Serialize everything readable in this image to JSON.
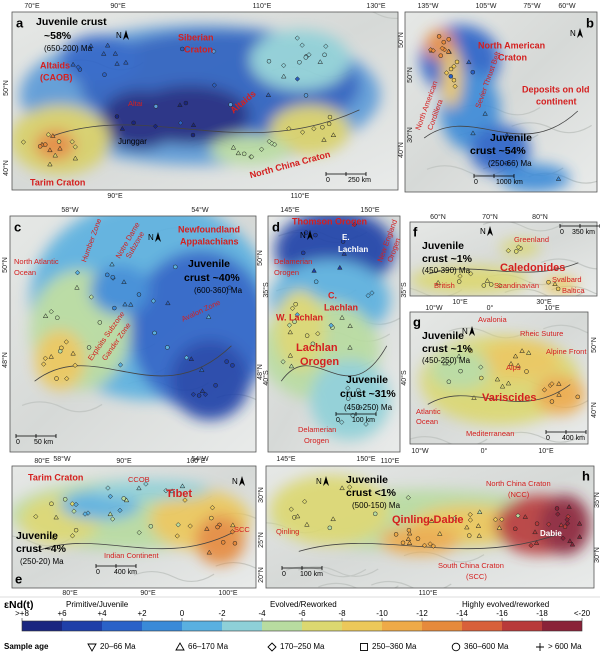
{
  "panels": [
    {
      "letter": "a",
      "labels": [
        "Juvenile crust",
        "~58%",
        "(650-200) Ma",
        "Altaids",
        "(CAOB)",
        "Siberian",
        "Craton",
        "Altaids",
        "Altai",
        "Junggar",
        "Tarim Craton",
        "North China Craton",
        "0",
        "250 km",
        "N"
      ],
      "ticks": [
        "70°E",
        "90°E",
        "110°E",
        "130°E",
        "90°E",
        "110°E",
        "50°N",
        "40°N",
        "50°N",
        "40°N"
      ]
    },
    {
      "letter": "b",
      "labels": [
        "North American",
        "Craton",
        "Deposits on old",
        "continent",
        "North American",
        "Cordillera",
        "Sevier Thrust Belt",
        "Juvenile",
        "crust ~54%",
        "(250-66) Ma",
        "0",
        "1000 km",
        "N"
      ],
      "ticks": [
        "135°W",
        "105°W",
        "75°W",
        "60°W",
        "50°N",
        "30°N"
      ]
    },
    {
      "letter": "c",
      "labels": [
        "Newfoundland",
        "Appalachians",
        "Juvenile",
        "crust ~40%",
        "(600-360) Ma",
        "North Atlantic",
        "Ocean",
        "Humber Zone",
        "Notre Dame",
        "Subzone",
        "Exploits Subzone",
        "Gander Zone",
        "Avalon Zone",
        "0",
        "50 km",
        "N"
      ],
      "ticks": [
        "58°W",
        "54°W",
        "58°W",
        "54°W",
        "50°N",
        "48°N",
        "50°N",
        "48°N"
      ]
    },
    {
      "letter": "d",
      "labels": [
        "Thomson Orogen",
        "E.",
        "Lachlan",
        "New England",
        "Orogen",
        "Delamerian",
        "Orogen",
        "C.",
        "Lachlan",
        "W. Lachlan",
        "Lachlan",
        "Orogen",
        "Juvenile",
        "crust ~31%",
        "(450-250) Ma",
        "Delamerian",
        "Orogen",
        "0",
        "100 km",
        "N"
      ],
      "ticks": [
        "145°E",
        "150°E",
        "145°E",
        "150°E",
        "35°S",
        "40°S",
        "35°S",
        "40°S"
      ]
    },
    {
      "letter": "f",
      "labels": [
        "Juvenile",
        "crust ~1%",
        "(450-390) Ma",
        "Greenland",
        "Caledonides",
        "British",
        "Scandinavian",
        "Svalbard",
        "Baltica",
        "0",
        "350 km",
        "N"
      ],
      "ticks": [
        "60°N",
        "70°N",
        "80°N",
        "10°E",
        "30°E"
      ]
    },
    {
      "letter": "g",
      "labels": [
        "Juvenile",
        "crust ~1%",
        "(450-250) Ma",
        "Avalonia",
        "Rheic Suture",
        "Alps",
        "Alpine Front",
        "Variscides",
        "Atlantic",
        "Ocean",
        "Mediterranean",
        "0",
        "400 km",
        "N"
      ],
      "ticks": [
        "10°W",
        "0°",
        "10°E",
        "50°N",
        "40°N",
        "10°W",
        "0°",
        "10°E"
      ]
    },
    {
      "letter": "e",
      "labels": [
        "Tarim Craton",
        "CCOB",
        "Tibet",
        "SCC",
        "Juvenile",
        "crust ~4%",
        "(250-20) Ma",
        "Indian Continent",
        "0",
        "400 km",
        "N"
      ],
      "ticks": [
        "80°E",
        "90°E",
        "100°E",
        "80°E",
        "90°E",
        "100°E",
        "30°N",
        "25°N",
        "20°N"
      ]
    },
    {
      "letter": "h",
      "labels": [
        "Juvenile",
        "crust <1%",
        "(500-150) Ma",
        "North China Craton",
        "(NCC)",
        "Qinling",
        "Qinling-Dabie",
        "Dabie",
        "South China Craton",
        "(SCC)",
        "0",
        "100 km",
        "N"
      ],
      "ticks": [
        "110°E",
        "110°E",
        "35°N",
        "30°N"
      ]
    }
  ],
  "legend": {
    "title": "εNd(t)",
    "groups": [
      "Primitive/Juvenile",
      "Evolved/Reworked",
      "Highly evolved/reworked"
    ],
    "ticks": [
      ">+8",
      "+6",
      "+4",
      "+2",
      "0",
      "-2",
      "-4",
      "-6",
      "-8",
      "-10",
      "-12",
      "-14",
      "-16",
      "-18",
      "<-20"
    ],
    "colors": [
      "#1a2680",
      "#1f3fa8",
      "#2a62c8",
      "#3a8ad8",
      "#5ab0e0",
      "#8ed0d8",
      "#b8dca0",
      "#dcd870",
      "#ecc85a",
      "#eeaa48",
      "#e68a3c",
      "#d8603a",
      "#b83a3a",
      "#8a2238"
    ],
    "age_title": "Sample age",
    "ages": [
      "20–66 Ma",
      "66–170 Ma",
      "170–250 Ma",
      "250–360 Ma",
      "360–600 Ma",
      "> 600 Ma"
    ]
  }
}
